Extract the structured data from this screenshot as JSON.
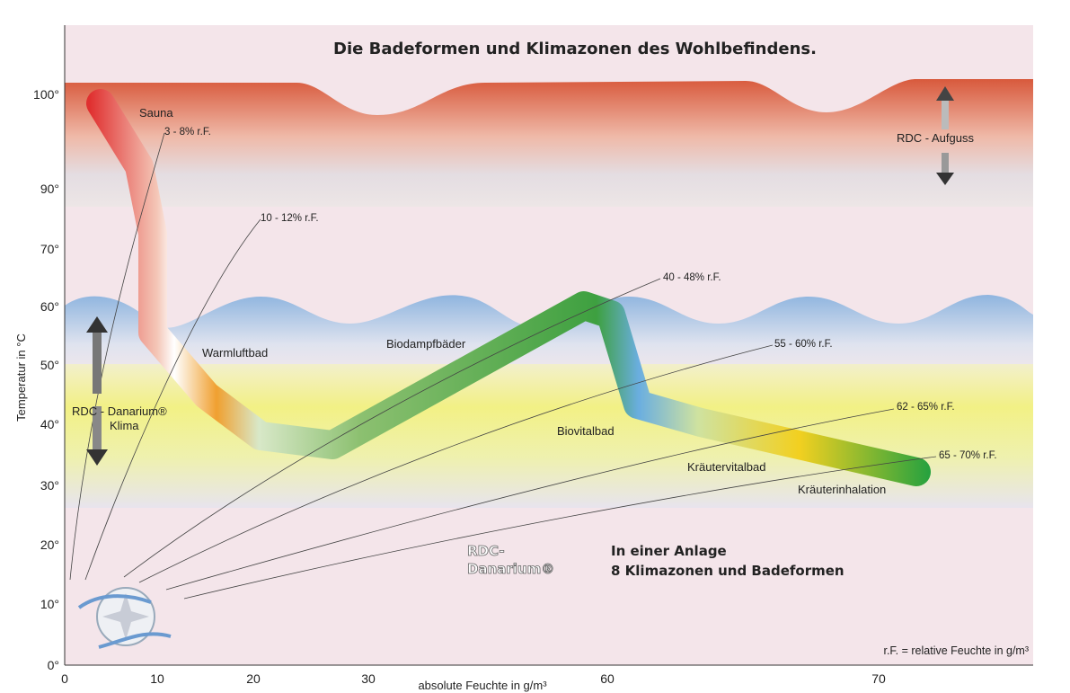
{
  "title": "Die Badeformen und Klimazonen des Wohlbefindens.",
  "y_axis": {
    "label": "Temperatur in °C",
    "ticks": [
      "100°",
      "90°",
      "70°",
      "60°",
      "50°",
      "40°",
      "30°",
      "20°",
      "10°",
      "0°"
    ]
  },
  "x_axis": {
    "label": "absolute Feuchte in g/m³",
    "ticks": [
      "0",
      "10",
      "20",
      "30",
      "60",
      "70"
    ]
  },
  "zones": [
    {
      "label": "Sauna",
      "humidity": "3 - 8% r.F."
    },
    {
      "label": "Warmluftbad",
      "humidity": "10 - 12% r.F."
    },
    {
      "label": "Biodampfbäder",
      "humidity": "40 - 48% r.F."
    },
    {
      "label": "Biovitalbad",
      "humidity": "55 - 60% r.F."
    },
    {
      "label": "Kräutervitalbad",
      "humidity": "62 - 65% r.F."
    },
    {
      "label": "Kräuterinhalation",
      "humidity": "65 - 70% r.F."
    }
  ],
  "aufguss": "RDC - Aufguss",
  "danarium_klima": [
    "RDC - Danarium®",
    "Klima"
  ],
  "brand": [
    "RDC-",
    "Danarium®"
  ],
  "slogan": [
    "In einer Anlage",
    "8 Klimazonen und Badeformen"
  ],
  "footnote": "r.F. = relative Feuchte in g/m³"
}
